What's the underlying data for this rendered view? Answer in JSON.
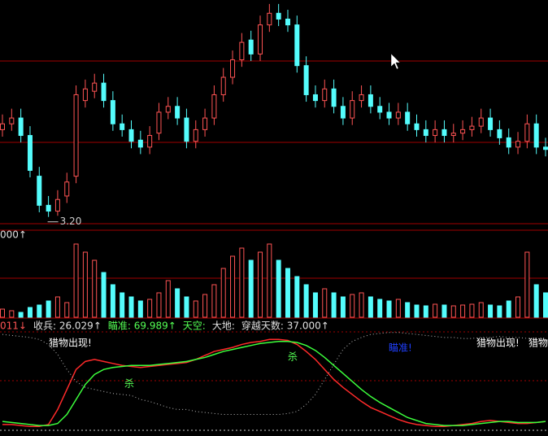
{
  "chart_data": [
    {
      "type": "candlestick",
      "open": [
        3.95,
        4.0,
        4.05,
        3.9,
        3.55,
        3.3,
        3.25,
        3.38,
        3.55,
        4.2,
        4.28,
        4.35,
        4.2,
        4.0,
        3.95,
        3.86,
        3.8,
        3.92,
        4.1,
        4.15,
        4.05,
        3.85,
        3.95,
        4.05,
        4.25,
        4.4,
        4.55,
        4.72,
        4.6,
        4.85,
        4.95,
        4.9,
        4.85,
        4.5,
        4.25,
        4.2,
        4.3,
        4.15,
        4.05,
        4.2,
        4.25,
        4.15,
        4.1,
        4.05,
        4.1,
        4.0,
        3.95,
        3.9,
        3.95,
        3.9,
        3.92,
        3.95,
        3.98,
        4.05,
        3.95,
        3.88,
        3.8,
        3.85,
        4.0,
        3.8
      ],
      "high": [
        4.08,
        4.13,
        4.13,
        3.98,
        3.63,
        3.38,
        3.43,
        3.58,
        4.33,
        4.38,
        4.43,
        4.43,
        4.28,
        4.08,
        4.03,
        3.94,
        3.98,
        4.18,
        4.23,
        4.23,
        4.13,
        4.03,
        4.13,
        4.33,
        4.48,
        4.63,
        4.78,
        4.8,
        4.93,
        5.03,
        5.03,
        4.98,
        4.93,
        4.58,
        4.33,
        4.38,
        4.38,
        4.23,
        4.28,
        4.33,
        4.33,
        4.23,
        4.18,
        4.18,
        4.18,
        4.08,
        4.03,
        4.03,
        4.03,
        4.0,
        4.03,
        4.06,
        4.13,
        4.13,
        4.03,
        3.96,
        3.93,
        4.08,
        4.08,
        3.88
      ],
      "low": [
        3.89,
        3.94,
        3.84,
        3.54,
        3.24,
        3.2,
        3.21,
        3.32,
        3.49,
        4.14,
        4.22,
        4.14,
        3.94,
        3.89,
        3.79,
        3.74,
        3.74,
        3.86,
        4.04,
        3.99,
        3.79,
        3.79,
        3.89,
        3.99,
        4.19,
        4.34,
        4.49,
        4.54,
        4.54,
        4.79,
        4.84,
        4.79,
        4.44,
        4.19,
        4.14,
        4.14,
        4.09,
        3.99,
        3.99,
        4.14,
        4.09,
        4.04,
        3.99,
        3.99,
        3.94,
        3.89,
        3.84,
        3.84,
        3.84,
        3.84,
        3.86,
        3.89,
        3.92,
        3.89,
        3.82,
        3.74,
        3.74,
        3.79,
        3.74,
        3.72
      ],
      "close": [
        4.0,
        4.05,
        3.9,
        3.6,
        3.3,
        3.25,
        3.35,
        3.5,
        4.25,
        4.3,
        4.35,
        4.2,
        4.0,
        3.95,
        3.85,
        3.8,
        3.9,
        4.1,
        4.15,
        4.05,
        3.85,
        3.95,
        4.05,
        4.25,
        4.4,
        4.55,
        4.7,
        4.6,
        4.85,
        4.95,
        4.9,
        4.85,
        4.5,
        4.25,
        4.2,
        4.3,
        4.15,
        4.05,
        4.2,
        4.25,
        4.15,
        4.1,
        4.05,
        4.1,
        4.0,
        3.95,
        3.9,
        3.95,
        3.9,
        3.92,
        3.95,
        3.98,
        4.05,
        3.95,
        3.88,
        3.8,
        3.85,
        4.0,
        3.8,
        3.78
      ],
      "ylim": [
        3.1,
        5.05
      ],
      "up_color": "#ff5454",
      "down_color": "#54fcfc",
      "low_label": {
        "value": 3.2,
        "label": "3.20"
      }
    },
    {
      "type": "bar",
      "values": [
        10,
        8,
        6,
        12,
        15,
        20,
        25,
        18,
        90,
        80,
        70,
        55,
        40,
        30,
        25,
        20,
        22,
        30,
        45,
        35,
        25,
        20,
        28,
        40,
        60,
        75,
        85,
        70,
        80,
        90,
        70,
        60,
        50,
        40,
        30,
        35,
        30,
        25,
        28,
        30,
        25,
        22,
        20,
        22,
        18,
        15,
        14,
        16,
        15,
        14,
        15,
        16,
        18,
        15,
        14,
        20,
        25,
        80,
        40,
        30
      ],
      "ylim": [
        0,
        100
      ],
      "corner_label": "000↑"
    },
    {
      "type": "line",
      "ylim": [
        0,
        100
      ],
      "header": [
        {
          "text": "011↓",
          "color": "#ff5454"
        },
        {
          "text": "收兵: 26.029↑",
          "color": "#e0e0e0"
        },
        {
          "text": "瞄准: 69.989↑",
          "color": "#54ff54"
        },
        {
          "text": "天空:",
          "color": "#54ff54"
        },
        {
          "text": "大地:",
          "color": "#e0e0e0"
        },
        {
          "text": "穿越天数: 37.000↑",
          "color": "#e0e0e0"
        }
      ],
      "annotations": [
        {
          "text": "猎物出现!",
          "color": "#ffffff"
        },
        {
          "text": "杀",
          "color": "#54ff54"
        },
        {
          "text": "杀",
          "color": "#54ff54"
        },
        {
          "text": "瞄准!",
          "color": "#2040ff"
        },
        {
          "text": "猎物出现!",
          "color": "#ffffff"
        },
        {
          "text": "猎物",
          "color": "#ffffff"
        }
      ],
      "series": [
        {
          "color": "#ff2a2a",
          "values": [
            5,
            5,
            4,
            3,
            3,
            5,
            20,
            40,
            60,
            68,
            70,
            68,
            66,
            64,
            63,
            62,
            63,
            64,
            65,
            66,
            67,
            70,
            74,
            78,
            80,
            82,
            85,
            87,
            88,
            90,
            90,
            89,
            85,
            78,
            70,
            60,
            50,
            42,
            35,
            28,
            22,
            18,
            14,
            10,
            7,
            5,
            4,
            3,
            3,
            4,
            5,
            6,
            8,
            9,
            8,
            7,
            6,
            6,
            7,
            8
          ]
        },
        {
          "color": "#3cff3c",
          "values": [
            8,
            7,
            6,
            5,
            4,
            4,
            6,
            15,
            30,
            45,
            55,
            60,
            62,
            63,
            64,
            64,
            64,
            65,
            66,
            67,
            68,
            70,
            72,
            75,
            78,
            80,
            82,
            84,
            86,
            87,
            88,
            88,
            87,
            84,
            79,
            72,
            64,
            56,
            48,
            40,
            33,
            27,
            22,
            17,
            12,
            9,
            6,
            5,
            4,
            4,
            4,
            5,
            6,
            7,
            8,
            8,
            7,
            7,
            7,
            8
          ]
        },
        {
          "color": "#bbbbbb",
          "dashed": true,
          "values": [
            95,
            94,
            93,
            92,
            90,
            85,
            75,
            60,
            48,
            42,
            40,
            38,
            36,
            35,
            34,
            30,
            28,
            25,
            22,
            20,
            20,
            18,
            17,
            16,
            15,
            15,
            15,
            15,
            15,
            15,
            15,
            16,
            18,
            25,
            35,
            50,
            65,
            80,
            88,
            92,
            95,
            96,
            97,
            97,
            96,
            95,
            94,
            93,
            92,
            92,
            91,
            91,
            92,
            92,
            93,
            92,
            92,
            91,
            91,
            90
          ]
        }
      ]
    }
  ]
}
